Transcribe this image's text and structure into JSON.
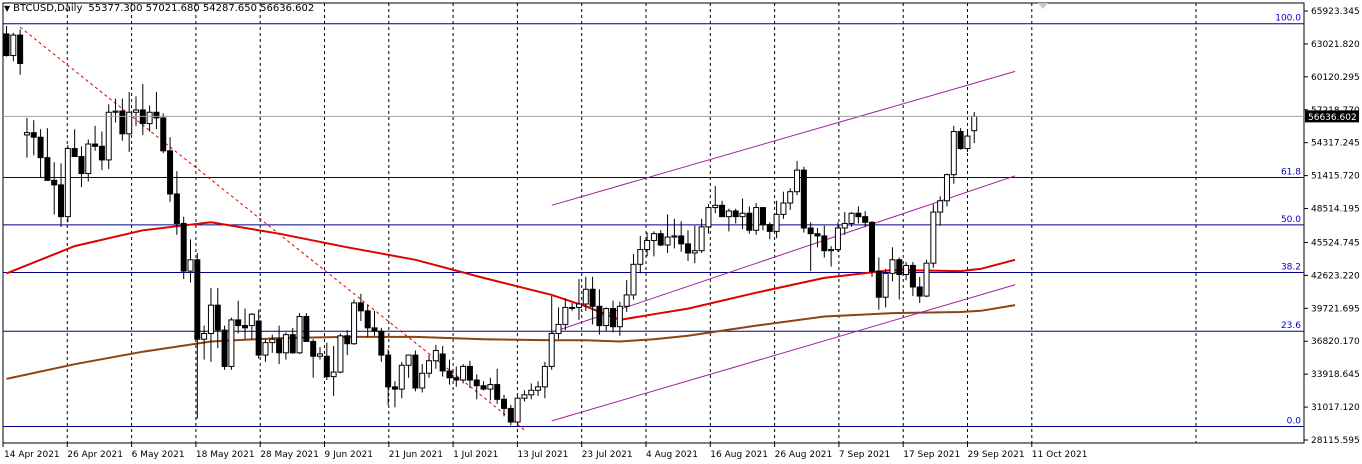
{
  "header": {
    "symbol_timeframe": "BTCUSD,Daily",
    "ohlc": "55377.300 57021.680 54287.650 56636.602"
  },
  "colors": {
    "up_candle": "#ffffff",
    "down_candle": "#000000",
    "ma_fast": "#e00000",
    "ma_slow": "#8b4513",
    "fib_line": "#00008b",
    "channel": "#a020a0",
    "trend_dashed": "#e00000",
    "grid": "#000000",
    "current_price_line": "#a0a0a0"
  },
  "chart_data": {
    "type": "candlestick",
    "instrument": "BTCUSD",
    "timeframe": "Daily",
    "y_axis_ticks": [
      "65923.345",
      "63021.820",
      "60120.295",
      "57218.770",
      "54317.245",
      "51415.720",
      "48514.195",
      "45524.745",
      "42623.220",
      "39721.695",
      "36820.170",
      "33918.645",
      "31017.120",
      "28115.595"
    ],
    "ylim": [
      28115.595,
      65923.345
    ],
    "x_axis_labels": [
      "14 Apr 2021",
      "26 Apr 2021",
      "6 May 2021",
      "18 May 2021",
      "28 May 2021",
      "9 Jun 2021",
      "21 Jun 2021",
      "1 Jul 2021",
      "13 Jul 2021",
      "23 Jul 2021",
      "4 Aug 2021",
      "16 Aug 2021",
      "26 Aug 2021",
      "7 Sep 2021",
      "17 Sep 2021",
      "29 Sep 2021",
      "11 Oct 2021"
    ],
    "current_price": "56636.602",
    "current_price_value": 56636.602,
    "fibonacci_levels": [
      {
        "label": "100.0",
        "value": 64800
      },
      {
        "label": "61.8",
        "value": 51250
      },
      {
        "label": "50.0",
        "value": 47080
      },
      {
        "label": "38.2",
        "value": 42880
      },
      {
        "label": "23.6",
        "value": 37700
      },
      {
        "label": "0.0",
        "value": 29300
      }
    ],
    "candles": [
      [
        63900,
        64600,
        61900,
        62000
      ],
      [
        62000,
        64000,
        61500,
        63800
      ],
      [
        63800,
        64300,
        60300,
        61300
      ],
      [
        55000,
        56500,
        53000,
        55200
      ],
      [
        55200,
        56300,
        53200,
        54800
      ],
      [
        54800,
        55500,
        51200,
        53000
      ],
      [
        53000,
        55600,
        51000,
        51000
      ],
      [
        51000,
        52600,
        48000,
        50600
      ],
      [
        50600,
        52500,
        46900,
        47800
      ],
      [
        47800,
        54100,
        47300,
        53800
      ],
      [
        53800,
        55500,
        53100,
        53100
      ],
      [
        53100,
        54000,
        50400,
        51600
      ],
      [
        51600,
        54600,
        50900,
        54200
      ],
      [
        54200,
        55800,
        53600,
        54000
      ],
      [
        54000,
        55300,
        51900,
        52800
      ],
      [
        52800,
        57700,
        52000,
        57000
      ],
      [
        57000,
        58200,
        56100,
        57100
      ],
      [
        57100,
        58200,
        54500,
        55100
      ],
      [
        55100,
        58800,
        53500,
        57000
      ],
      [
        57000,
        58400,
        55800,
        57200
      ],
      [
        57200,
        59500,
        55000,
        56000
      ],
      [
        56000,
        57600,
        55300,
        57000
      ],
      [
        57000,
        58800,
        55500,
        56500
      ],
      [
        56500,
        56900,
        53400,
        53600
      ],
      [
        53600,
        54800,
        49100,
        49800
      ],
      [
        49800,
        51800,
        46200,
        47200
      ],
      [
        47200,
        47800,
        42300,
        43000
      ],
      [
        43000,
        45800,
        42000,
        44000
      ],
      [
        44000,
        44600,
        30000,
        37000
      ],
      [
        37000,
        38200,
        35200,
        37500
      ],
      [
        37500,
        41500,
        35000,
        40000
      ],
      [
        40000,
        41500,
        36200,
        37800
      ],
      [
        37800,
        38200,
        34300,
        34600
      ],
      [
        34600,
        38900,
        34300,
        38700
      ],
      [
        38700,
        40400,
        37500,
        38200
      ],
      [
        38200,
        39700,
        37000,
        38000
      ],
      [
        38200,
        39300,
        37000,
        39200
      ],
      [
        38600,
        39600,
        35300,
        35600
      ],
      [
        35600,
        37000,
        35000,
        36700
      ],
      [
        36700,
        37400,
        35800,
        37000
      ],
      [
        37000,
        38200,
        34800,
        35800
      ],
      [
        35800,
        37600,
        35200,
        37400
      ],
      [
        37400,
        38000,
        35700,
        35800
      ],
      [
        35800,
        39300,
        35700,
        39000
      ],
      [
        39000,
        39300,
        36800,
        36800
      ],
      [
        36800,
        37000,
        33600,
        35500
      ],
      [
        35500,
        36300,
        35200,
        35700
      ],
      [
        35500,
        36700,
        33400,
        33700
      ],
      [
        33700,
        36400,
        32000,
        34100
      ],
      [
        34100,
        37500,
        34000,
        37300
      ],
      [
        37300,
        37800,
        35600,
        36600
      ],
      [
        36600,
        40500,
        36500,
        40200
      ],
      [
        40200,
        41000,
        38600,
        39500
      ],
      [
        39500,
        40000,
        37200,
        38000
      ],
      [
        38000,
        39500,
        37300,
        37700
      ],
      [
        37700,
        38000,
        35000,
        35600
      ],
      [
        35600,
        36100,
        31200,
        32800
      ],
      [
        32800,
        33300,
        31000,
        32600
      ],
      [
        32600,
        35000,
        31800,
        34700
      ],
      [
        34700,
        35500,
        33600,
        35600
      ],
      [
        35600,
        36000,
        32400,
        32700
      ],
      [
        32700,
        34800,
        32300,
        34000
      ],
      [
        34000,
        35600,
        33600,
        35100
      ],
      [
        35100,
        36500,
        34400,
        36000
      ],
      [
        35700,
        36400,
        33700,
        34200
      ],
      [
        34200,
        35200,
        33000,
        33600
      ],
      [
        33600,
        34600,
        32800,
        33400
      ],
      [
        33400,
        34800,
        33100,
        34600
      ],
      [
        34600,
        35100,
        32700,
        33400
      ],
      [
        33400,
        33900,
        31700,
        32900
      ],
      [
        32900,
        33300,
        32500,
        32600
      ],
      [
        32600,
        33600,
        31600,
        33000
      ],
      [
        33000,
        34400,
        31300,
        31700
      ],
      [
        31700,
        32100,
        30200,
        30900
      ],
      [
        30900,
        31200,
        29400,
        29700
      ],
      [
        29700,
        32000,
        29500,
        31800
      ],
      [
        31800,
        32500,
        31500,
        32100
      ],
      [
        32100,
        33100,
        31700,
        32500
      ],
      [
        32500,
        33300,
        32000,
        32800
      ],
      [
        32800,
        35000,
        31800,
        34600
      ],
      [
        34600,
        40800,
        34300,
        37500
      ],
      [
        37500,
        39800,
        37000,
        38300
      ],
      [
        38300,
        40600,
        37800,
        39800
      ],
      [
        39800,
        40200,
        39500,
        39800
      ],
      [
        39800,
        42300,
        38700,
        40100
      ],
      [
        40100,
        42500,
        39500,
        41400
      ],
      [
        41400,
        42500,
        38300,
        39900
      ],
      [
        39900,
        41400,
        37400,
        38200
      ],
      [
        38200,
        39800,
        37700,
        39700
      ],
      [
        39700,
        40400,
        37600,
        38100
      ],
      [
        38100,
        40300,
        37300,
        39900
      ],
      [
        39900,
        42200,
        39400,
        40900
      ],
      [
        40900,
        44500,
        40500,
        43600
      ],
      [
        43600,
        46100,
        42800,
        44900
      ],
      [
        44900,
        46400,
        44300,
        45700
      ],
      [
        45700,
        46500,
        44300,
        46300
      ],
      [
        46300,
        46600,
        45200,
        45300
      ],
      [
        45300,
        48000,
        44600,
        46000
      ],
      [
        46000,
        47600,
        45000,
        46100
      ],
      [
        46100,
        47400,
        44700,
        45400
      ],
      [
        45400,
        46600,
        43900,
        44600
      ],
      [
        44600,
        47000,
        43700,
        44800
      ],
      [
        44800,
        47600,
        44600,
        46900
      ],
      [
        46900,
        48900,
        46300,
        48600
      ],
      [
        48600,
        50500,
        48100,
        48800
      ],
      [
        48800,
        49200,
        47800,
        47800
      ],
      [
        47800,
        48500,
        46500,
        48300
      ],
      [
        48300,
        48500,
        47200,
        47800
      ],
      [
        47800,
        49400,
        46700,
        48100
      ],
      [
        48100,
        48700,
        46300,
        46600
      ],
      [
        46600,
        49000,
        46200,
        48600
      ],
      [
        48600,
        48500,
        46600,
        47100
      ],
      [
        47100,
        47300,
        45800,
        46500
      ],
      [
        46500,
        49200,
        45900,
        48000
      ],
      [
        48000,
        50000,
        47600,
        49000
      ],
      [
        49000,
        50300,
        48400,
        50000
      ],
      [
        50000,
        52700,
        49700,
        51900
      ],
      [
        51900,
        52200,
        46400,
        46800
      ],
      [
        46800,
        47300,
        43000,
        46300
      ],
      [
        46300,
        46800,
        45100,
        46100
      ],
      [
        46100,
        47000,
        44200,
        44800
      ],
      [
        44800,
        45200,
        43400,
        44900
      ],
      [
        44900,
        47300,
        44700,
        46800
      ],
      [
        46800,
        48200,
        46200,
        47200
      ],
      [
        47200,
        48200,
        46900,
        48100
      ],
      [
        48100,
        48700,
        47200,
        47800
      ],
      [
        47800,
        48300,
        46900,
        47300
      ],
      [
        47300,
        47400,
        42500,
        43000
      ],
      [
        43000,
        44200,
        39600,
        40700
      ],
      [
        40700,
        43200,
        39800,
        42800
      ],
      [
        42800,
        45100,
        42100,
        44000
      ],
      [
        44000,
        44200,
        40500,
        42700
      ],
      [
        42700,
        43800,
        42200,
        43500
      ],
      [
        43500,
        43800,
        40800,
        41600
      ],
      [
        41600,
        42500,
        40200,
        40800
      ],
      [
        40800,
        44000,
        40700,
        43700
      ],
      [
        43700,
        48900,
        43300,
        48200
      ],
      [
        48200,
        49600,
        47000,
        49200
      ],
      [
        49200,
        51600,
        48700,
        51500
      ],
      [
        51500,
        55800,
        50700,
        55300
      ],
      [
        55300,
        55600,
        53700,
        53800
      ],
      [
        53800,
        55300,
        53500,
        54900
      ],
      [
        55377.3,
        57021.68,
        54287.65,
        56636.602
      ]
    ],
    "moving_averages": [
      {
        "type": "fast",
        "points": [
          [
            0,
            42800
          ],
          [
            10,
            45200
          ],
          [
            20,
            46600
          ],
          [
            30,
            47300
          ],
          [
            40,
            46300
          ],
          [
            50,
            45100
          ],
          [
            60,
            44000
          ],
          [
            70,
            42400
          ],
          [
            80,
            40900
          ],
          [
            85,
            39900
          ],
          [
            90,
            38700
          ],
          [
            95,
            39200
          ],
          [
            100,
            39700
          ],
          [
            110,
            41100
          ],
          [
            120,
            42400
          ],
          [
            130,
            43100
          ],
          [
            140,
            43000
          ],
          [
            143,
            43200
          ],
          [
            148,
            44000
          ]
        ]
      },
      {
        "type": "slow",
        "points": [
          [
            0,
            33500
          ],
          [
            10,
            34800
          ],
          [
            20,
            35900
          ],
          [
            30,
            36800
          ],
          [
            40,
            37100
          ],
          [
            50,
            37200
          ],
          [
            60,
            37200
          ],
          [
            70,
            37000
          ],
          [
            80,
            36900
          ],
          [
            85,
            36900
          ],
          [
            90,
            36800
          ],
          [
            95,
            37000
          ],
          [
            100,
            37300
          ],
          [
            110,
            38200
          ],
          [
            120,
            39000
          ],
          [
            130,
            39300
          ],
          [
            140,
            39400
          ],
          [
            143,
            39500
          ],
          [
            148,
            40000
          ]
        ]
      }
    ],
    "trendlines": [
      {
        "style": "dashed",
        "from": [
          2,
          64500
        ],
        "to": [
          76,
          29000
        ]
      },
      {
        "style": "channel",
        "from": [
          80,
          48800
        ],
        "to": [
          148,
          60600
        ]
      },
      {
        "style": "channel",
        "from": [
          80,
          37600
        ],
        "to": [
          148,
          51400
        ]
      },
      {
        "style": "channel",
        "from": [
          80,
          29800
        ],
        "to": [
          148,
          41800
        ]
      }
    ],
    "grid": true,
    "legend": ""
  }
}
